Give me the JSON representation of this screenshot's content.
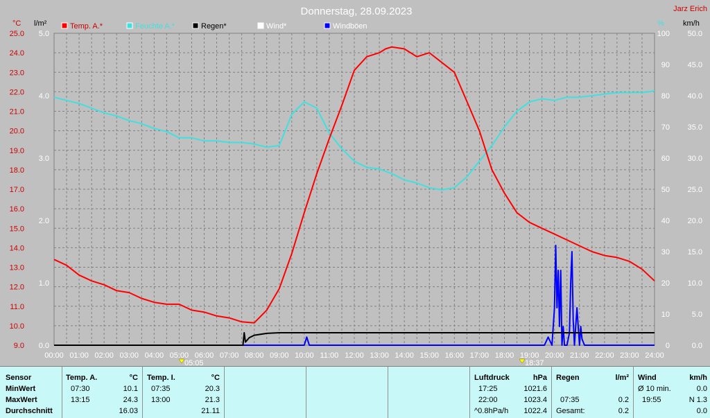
{
  "header": {
    "title": "Donnerstag, 28.09.2023",
    "author": "Jarz Erich"
  },
  "legend": [
    {
      "label": "Temp. A.*",
      "color": "#ff0000"
    },
    {
      "label": "Feuchte A.*",
      "color": "#40e0e0"
    },
    {
      "label": "Regen*",
      "color": "#000000"
    },
    {
      "label": "Wind*",
      "color": "#ffffff"
    },
    {
      "label": "Windböen",
      "color": "#0000ff"
    }
  ],
  "axis_units": {
    "temp": "°C",
    "rain": "l/m²",
    "humidity": "%",
    "wind": "km/h"
  },
  "markers": {
    "sunrise": "05:05",
    "sunset": "18:37"
  },
  "colors": {
    "temp": "#ff0000",
    "humidity": "#40e0e0",
    "rain": "#000000",
    "gusts": "#0000ff",
    "background": "#c0c0c0",
    "stats_bg": "#c8f8f8"
  },
  "chart_data": {
    "type": "line",
    "title": "Donnerstag, 28.09.2023",
    "x_ticks": [
      "00:00",
      "01:00",
      "02:00",
      "03:00",
      "04:00",
      "05:00",
      "06:00",
      "07:00",
      "08:00",
      "09:00",
      "10:00",
      "11:00",
      "12:00",
      "13:00",
      "14:00",
      "15:00",
      "16:00",
      "17:00",
      "18:00",
      "19:00",
      "20:00",
      "21:00",
      "22:00",
      "23:00",
      "24:00"
    ],
    "xlim": [
      0,
      24
    ],
    "axes": {
      "temp": {
        "label": "°C",
        "ylim": [
          9.0,
          25.0
        ],
        "ticks": [
          "9.0",
          "10.0",
          "11.0",
          "12.0",
          "13.0",
          "14.0",
          "15.0",
          "16.0",
          "17.0",
          "18.0",
          "19.0",
          "20.0",
          "21.0",
          "22.0",
          "23.0",
          "24.0",
          "25.0"
        ]
      },
      "rain": {
        "label": "l/m²",
        "ylim": [
          0,
          5.0
        ],
        "ticks": [
          "0.0",
          "1.0",
          "2.0",
          "3.0",
          "4.0",
          "5.0"
        ]
      },
      "humidity": {
        "label": "%",
        "ylim": [
          0,
          100
        ],
        "ticks": [
          "0",
          "10",
          "20",
          "30",
          "40",
          "50",
          "60",
          "70",
          "80",
          "90",
          "100"
        ]
      },
      "wind": {
        "label": "km/h",
        "ylim": [
          0,
          50.0
        ],
        "ticks": [
          "0.0",
          "5.0",
          "10.0",
          "15.0",
          "20.0",
          "25.0",
          "30.0",
          "35.0",
          "40.0",
          "45.0",
          "50.0"
        ]
      }
    },
    "grid": true,
    "series": [
      {
        "name": "Temp. A.*",
        "axis": "temp",
        "x": [
          0,
          0.5,
          1,
          1.5,
          2,
          2.5,
          3,
          3.5,
          4,
          4.5,
          5,
          5.5,
          6,
          6.5,
          7,
          7.5,
          8,
          8.5,
          9,
          9.5,
          10,
          10.5,
          11,
          11.5,
          12,
          12.5,
          13,
          13.25,
          13.5,
          14,
          14.5,
          15,
          15.5,
          16,
          16.5,
          17,
          17.5,
          18,
          18.5,
          19,
          19.5,
          20,
          20.5,
          21,
          21.5,
          22,
          22.5,
          23,
          23.5,
          24
        ],
        "y": [
          13.4,
          13.1,
          12.6,
          12.3,
          12.1,
          11.8,
          11.7,
          11.4,
          11.2,
          11.1,
          11.1,
          10.8,
          10.7,
          10.5,
          10.4,
          10.2,
          10.15,
          10.8,
          11.9,
          13.7,
          15.8,
          17.8,
          19.6,
          21.3,
          23.1,
          23.8,
          24.0,
          24.2,
          24.3,
          24.2,
          23.8,
          24.0,
          23.5,
          23.0,
          21.5,
          20.0,
          18.0,
          16.8,
          15.8,
          15.3,
          15.0,
          14.7,
          14.4,
          14.1,
          13.8,
          13.6,
          13.5,
          13.3,
          12.9,
          12.3
        ]
      },
      {
        "name": "Feuchte A.*",
        "axis": "humidity",
        "x": [
          0,
          0.5,
          1,
          1.5,
          2,
          2.5,
          3,
          3.5,
          4,
          4.5,
          5,
          5.5,
          6,
          6.5,
          7,
          7.5,
          8,
          8.5,
          9,
          9.5,
          10,
          10.5,
          11,
          11.5,
          12,
          12.5,
          13,
          13.5,
          14,
          14.5,
          15,
          15.5,
          16,
          16.5,
          17,
          17.5,
          18,
          18.5,
          19,
          19.5,
          20,
          20.5,
          21,
          21.5,
          22,
          22.5,
          23,
          23.5,
          24
        ],
        "y": [
          79.5,
          78.5,
          77.5,
          76,
          74.5,
          73.5,
          72,
          71,
          69.5,
          68.5,
          66.5,
          66.5,
          65.5,
          65.5,
          65,
          65,
          64.5,
          63.5,
          64,
          74,
          78,
          76,
          68,
          63,
          59,
          57,
          56.5,
          55,
          53,
          52,
          50.5,
          49.8,
          50.5,
          54,
          59,
          64,
          70,
          75,
          78,
          79,
          78.5,
          79.5,
          79.5,
          80,
          80.5,
          81,
          81,
          81,
          81.5
        ]
      },
      {
        "name": "Regen*",
        "axis": "rain",
        "x": [
          0,
          7.55,
          7.6,
          7.65,
          7.8,
          8,
          8.5,
          9,
          24
        ],
        "y": [
          0,
          0,
          0.2,
          0.05,
          0.12,
          0.16,
          0.19,
          0.2,
          0.2
        ]
      },
      {
        "name": "Windböen",
        "axis": "wind",
        "x": [
          0,
          10,
          10.1,
          10.2,
          19.6,
          19.75,
          19.9,
          20.0,
          20.05,
          20.1,
          20.15,
          20.2,
          20.25,
          20.3,
          20.35,
          20.4,
          20.5,
          20.6,
          20.65,
          20.7,
          20.75,
          20.8,
          20.9,
          20.95,
          21.0,
          21.05,
          21.1,
          21.2,
          24
        ],
        "y": [
          0,
          0,
          1.3,
          0,
          0,
          1.3,
          0,
          6,
          16,
          6,
          12,
          3,
          12,
          0,
          3,
          0,
          0,
          2,
          10,
          15,
          4,
          0,
          6,
          3,
          0,
          3,
          1,
          0,
          0
        ]
      }
    ]
  },
  "stats": {
    "sensor": {
      "header": "Sensor",
      "rows": [
        "MinWert",
        "MaxWert",
        "Durchschnitt"
      ]
    },
    "temp_a": {
      "header": "Temp. A.",
      "unit": "°C",
      "min_time": "07:30",
      "min_val": "10.1",
      "max_time": "13:15",
      "max_val": "24.3",
      "avg": "16.03"
    },
    "temp_i": {
      "header": "Temp. I.",
      "unit": "°C",
      "min_time": "07:35",
      "min_val": "20.3",
      "max_time": "13:00",
      "max_val": "21.3",
      "avg": "21.11"
    },
    "pressure": {
      "header": "Luftdruck",
      "unit": "hPa",
      "min_time": "17:25",
      "min_val": "1021.6",
      "max_time": "22:00",
      "max_val": "1023.4",
      "trend": "^0.8hPa/h",
      "avg": "1022.4"
    },
    "rain": {
      "header": "Regen",
      "unit": "l/m²",
      "max_time": "07:35",
      "max_val": "0.2",
      "total_label": "Gesamt:",
      "total": "0.2"
    },
    "wind": {
      "header": "Wind",
      "unit": "km/h",
      "avg_label": "Ø 10 min.",
      "avg_val": "0.0",
      "max_time": "19:55",
      "max_val": "N 1.3",
      "avg": "0.0"
    }
  }
}
